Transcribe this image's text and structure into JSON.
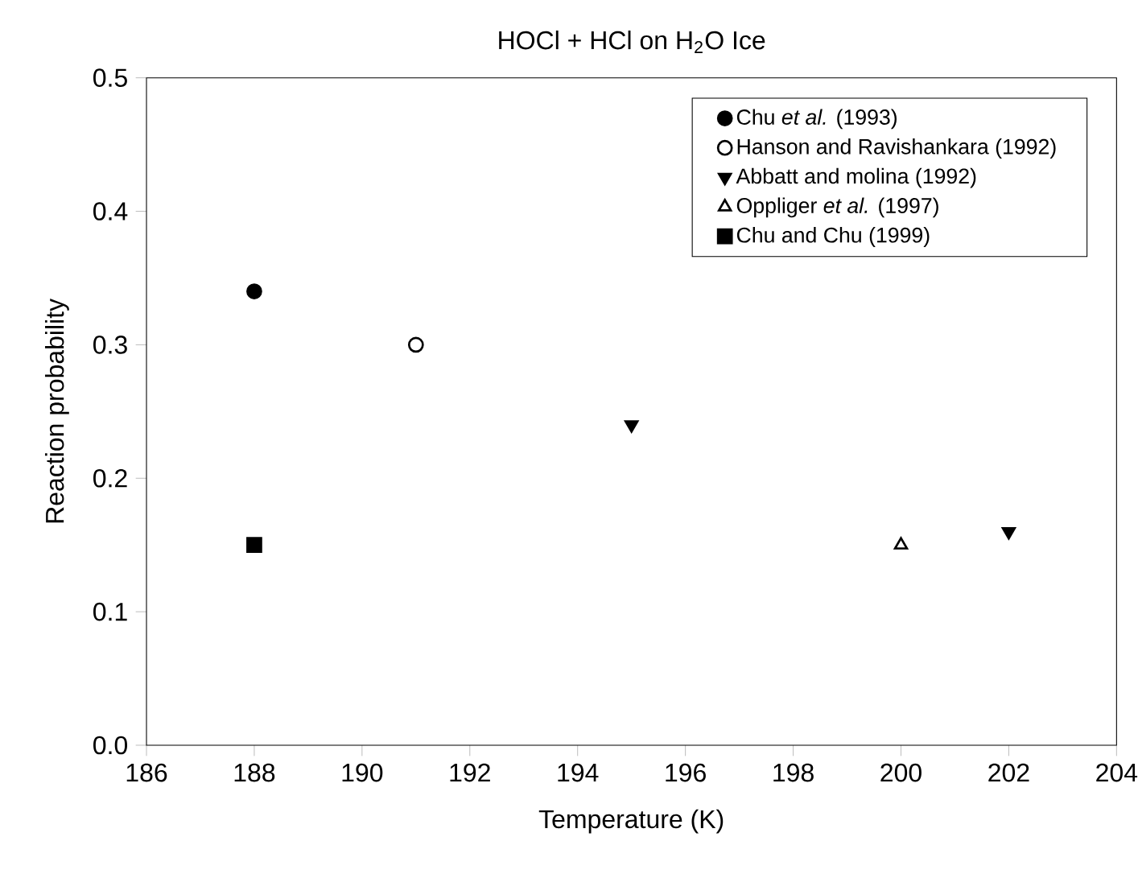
{
  "chart_data": {
    "type": "scatter",
    "title": "HOCl + HCl on H$_{2}$O Ice",
    "xlabel": "Temperature (K)",
    "ylabel": "Reaction probability",
    "series": [
      {
        "name": "Chu *et al.* (1993)",
        "color": "#000000",
        "marker": "circle",
        "x": [
          188
        ],
        "values": [
          0.34
        ]
      },
      {
        "name": "Hanson and Ravishankara (1992)",
        "color": "#ffffff",
        "marker": "circle",
        "x": [
          191
        ],
        "values": [
          0.3
        ]
      },
      {
        "name": "Abbatt and molina (1992)",
        "color": "#000000",
        "marker": "triangle down",
        "x": [
          195,
          202
        ],
        "values": [
          0.24,
          0.16
        ]
      },
      {
        "name": "Oppliger *et al.* (1997)",
        "color": "#ffffff",
        "marker": "triangle",
        "x": [
          200
        ],
        "values": [
          0.15
        ]
      },
      {
        "name": "Chu and Chu (1999)",
        "color": "#000000",
        "marker": "square",
        "x": [
          188
        ],
        "values": [
          0.15
        ]
      }
    ],
    "xlim": [
      186,
      204
    ],
    "xticks": [
      186,
      188,
      190,
      192,
      194,
      196,
      198,
      200,
      202,
      204
    ],
    "ylim": [
      0,
      0.5
    ],
    "yticks": [
      {
        "value": 0,
        "label": "0.0"
      },
      0.1,
      0.2,
      0.3,
      0.4,
      0.5
    ],
    "grid": false,
    "legend": "top right"
  }
}
